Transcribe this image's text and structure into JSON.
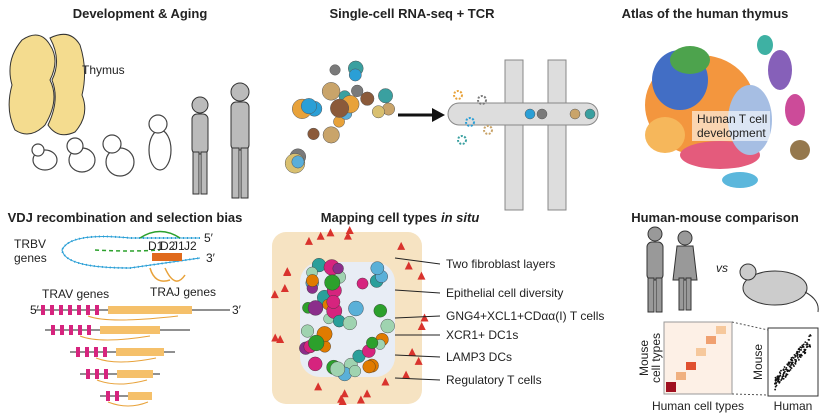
{
  "panels": [
    {
      "title": "Development & Aging",
      "labels": [
        "Thymus"
      ]
    },
    {
      "title": "Single-cell RNA-seq + TCR"
    },
    {
      "title": "Atlas of the human thymus",
      "labels": [
        "Human T cell",
        "development"
      ]
    },
    {
      "title": "VDJ recombination and selection bias",
      "labels": [
        "TRBV",
        "genes",
        "5′",
        "3′",
        "D1",
        "D2",
        "J1",
        "J2",
        "TRAV genes",
        "TRAJ genes",
        "5′",
        "3′"
      ]
    },
    {
      "title": "Mapping cell types",
      "title_italic": "in situ",
      "labels": [
        "Two fibroblast layers",
        "Epithelial cell diversity",
        "GNG4+XCL1+CDαα(I) T cells",
        "XCR1+ DC1s",
        "LAMP3 DCs",
        "Regulatory T cells"
      ]
    },
    {
      "title": "Human-mouse comparison",
      "labels": [
        "vs",
        "Mouse",
        "cell types",
        "Human cell types",
        "Mouse",
        "Human"
      ]
    }
  ]
}
